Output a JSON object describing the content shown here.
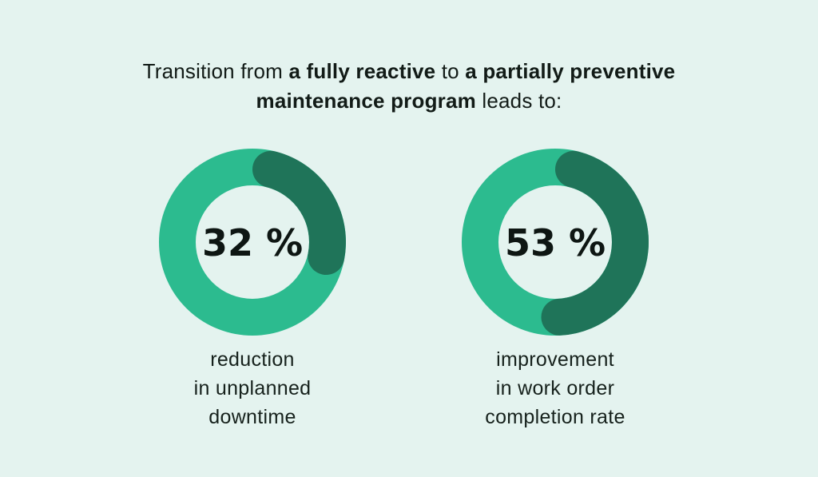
{
  "page": {
    "background_color": "#E4F3EF",
    "text_color": "#121B17"
  },
  "title": {
    "full_text": "Transition from a fully reactive to a partially preventive maintenance program leads to:",
    "lines": [
      {
        "segments": [
          {
            "text": "Transition from ",
            "bold": false
          },
          {
            "text": "a fully reactive",
            "bold": true
          },
          {
            "text": " to ",
            "bold": false
          },
          {
            "text": "a partially preventive",
            "bold": true
          }
        ]
      },
      {
        "segments": [
          {
            "text": "maintenance program",
            "bold": true
          },
          {
            "text": " leads to:",
            "bold": false
          }
        ]
      }
    ]
  },
  "chart_data": [
    {
      "type": "donut",
      "value": 32,
      "unit": "%",
      "value_label": "32 %",
      "caption": "reduction in unplanned downtime",
      "caption_lines": [
        "reduction",
        "in unplanned",
        "downtime"
      ],
      "track_color": "#2CBB8F",
      "progress_color": "#1F7459",
      "start_angle_deg": 0,
      "direction": "clockwise",
      "rounded_caps": true
    },
    {
      "type": "donut",
      "value": 53,
      "unit": "%",
      "value_label": "53 %",
      "caption": "improvement in work order completion rate",
      "caption_lines": [
        "improvement",
        "in work order",
        "completion rate"
      ],
      "track_color": "#2CBB8F",
      "progress_color": "#1F7459",
      "start_angle_deg": 0,
      "direction": "clockwise",
      "rounded_caps": true
    }
  ]
}
